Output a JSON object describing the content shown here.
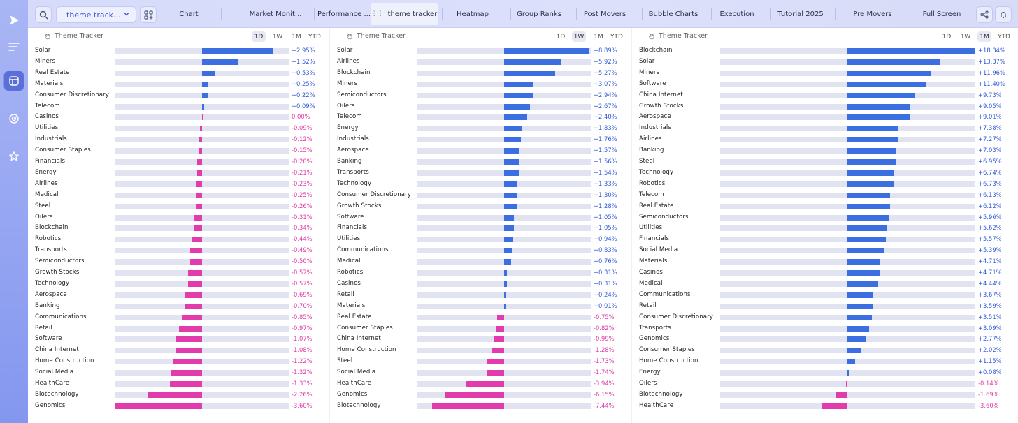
{
  "colors": {
    "positive": "#3b6ee0",
    "negative": "#e23cac"
  },
  "toolbar": {
    "search_icon": "search-icon",
    "select_value": "theme track...",
    "layout_icon": "grid-plus-icon",
    "share_icon": "share-icon",
    "bell_icon": "bell-icon"
  },
  "tabs": [
    {
      "label": "Chart"
    },
    {
      "label": "Market Monit..."
    },
    {
      "label": "Performance ..."
    },
    {
      "label": "theme tracker",
      "active": true
    },
    {
      "label": "Heatmap"
    },
    {
      "label": "Group Ranks"
    },
    {
      "label": "Post Movers"
    },
    {
      "label": "Bubble Charts"
    },
    {
      "label": "Execution"
    },
    {
      "label": "Tutorial 2025"
    },
    {
      "label": "Pre Movers"
    },
    {
      "label": "Full Screen"
    }
  ],
  "panels": [
    {
      "title": "Theme Tracker",
      "timeframes": [
        "1D",
        "1W",
        "1M",
        "YTD"
      ],
      "active_timeframe": "1D",
      "scale_max": 3.6,
      "rows": [
        {
          "name": "Solar",
          "value": 2.95,
          "label": "+2.95%"
        },
        {
          "name": "Miners",
          "value": 1.52,
          "label": "+1.52%"
        },
        {
          "name": "Real Estate",
          "value": 0.53,
          "label": "+0.53%"
        },
        {
          "name": "Materials",
          "value": 0.25,
          "label": "+0.25%"
        },
        {
          "name": "Consumer Discretionary",
          "value": 0.22,
          "label": "+0.22%"
        },
        {
          "name": "Telecom",
          "value": 0.09,
          "label": "+0.09%"
        },
        {
          "name": "Casinos",
          "value": 0.0,
          "label": "0.00%"
        },
        {
          "name": "Utilities",
          "value": -0.09,
          "label": "-0.09%"
        },
        {
          "name": "Industrials",
          "value": -0.12,
          "label": "-0.12%"
        },
        {
          "name": "Consumer Staples",
          "value": -0.15,
          "label": "-0.15%"
        },
        {
          "name": "Financials",
          "value": -0.2,
          "label": "-0.20%"
        },
        {
          "name": "Energy",
          "value": -0.21,
          "label": "-0.21%"
        },
        {
          "name": "Airlines",
          "value": -0.23,
          "label": "-0.23%"
        },
        {
          "name": "Medical",
          "value": -0.25,
          "label": "-0.25%"
        },
        {
          "name": "Steel",
          "value": -0.26,
          "label": "-0.26%"
        },
        {
          "name": "Oilers",
          "value": -0.31,
          "label": "-0.31%"
        },
        {
          "name": "Blockchain",
          "value": -0.34,
          "label": "-0.34%"
        },
        {
          "name": "Robotics",
          "value": -0.44,
          "label": "-0.44%"
        },
        {
          "name": "Transports",
          "value": -0.49,
          "label": "-0.49%"
        },
        {
          "name": "Semiconductors",
          "value": -0.5,
          "label": "-0.50%"
        },
        {
          "name": "Growth Stocks",
          "value": -0.57,
          "label": "-0.57%"
        },
        {
          "name": "Technology",
          "value": -0.57,
          "label": "-0.57%"
        },
        {
          "name": "Aerospace",
          "value": -0.69,
          "label": "-0.69%"
        },
        {
          "name": "Banking",
          "value": -0.7,
          "label": "-0.70%"
        },
        {
          "name": "Communications",
          "value": -0.85,
          "label": "-0.85%"
        },
        {
          "name": "Retail",
          "value": -0.97,
          "label": "-0.97%"
        },
        {
          "name": "Software",
          "value": -1.07,
          "label": "-1.07%"
        },
        {
          "name": "China Internet",
          "value": -1.08,
          "label": "-1.08%"
        },
        {
          "name": "Home Construction",
          "value": -1.22,
          "label": "-1.22%"
        },
        {
          "name": "Social Media",
          "value": -1.32,
          "label": "-1.32%"
        },
        {
          "name": "HealthCare",
          "value": -1.33,
          "label": "-1.33%"
        },
        {
          "name": "Biotechnology",
          "value": -2.26,
          "label": "-2.26%"
        },
        {
          "name": "Genomics",
          "value": -3.6,
          "label": "-3.60%"
        }
      ]
    },
    {
      "title": "Theme Tracker",
      "timeframes": [
        "1D",
        "1W",
        "1M",
        "YTD"
      ],
      "active_timeframe": "1W",
      "scale_max": 9.0,
      "rows": [
        {
          "name": "Solar",
          "value": 8.89,
          "label": "+8.89%"
        },
        {
          "name": "Airlines",
          "value": 5.92,
          "label": "+5.92%"
        },
        {
          "name": "Blockchain",
          "value": 5.27,
          "label": "+5.27%"
        },
        {
          "name": "Miners",
          "value": 3.07,
          "label": "+3.07%"
        },
        {
          "name": "Semiconductors",
          "value": 2.94,
          "label": "+2.94%"
        },
        {
          "name": "Oilers",
          "value": 2.67,
          "label": "+2.67%"
        },
        {
          "name": "Telecom",
          "value": 2.4,
          "label": "+2.40%"
        },
        {
          "name": "Energy",
          "value": 1.83,
          "label": "+1.83%"
        },
        {
          "name": "Industrials",
          "value": 1.76,
          "label": "+1.76%"
        },
        {
          "name": "Aerospace",
          "value": 1.57,
          "label": "+1.57%"
        },
        {
          "name": "Banking",
          "value": 1.56,
          "label": "+1.56%"
        },
        {
          "name": "Transports",
          "value": 1.54,
          "label": "+1.54%"
        },
        {
          "name": "Technology",
          "value": 1.33,
          "label": "+1.33%"
        },
        {
          "name": "Consumer Discretionary",
          "value": 1.3,
          "label": "+1.30%"
        },
        {
          "name": "Growth Stocks",
          "value": 1.28,
          "label": "+1.28%"
        },
        {
          "name": "Software",
          "value": 1.05,
          "label": "+1.05%"
        },
        {
          "name": "Financials",
          "value": 1.05,
          "label": "+1.05%"
        },
        {
          "name": "Utilities",
          "value": 0.94,
          "label": "+0.94%"
        },
        {
          "name": "Communications",
          "value": 0.83,
          "label": "+0.83%"
        },
        {
          "name": "Medical",
          "value": 0.76,
          "label": "+0.76%"
        },
        {
          "name": "Robotics",
          "value": 0.31,
          "label": "+0.31%"
        },
        {
          "name": "Casinos",
          "value": 0.31,
          "label": "+0.31%"
        },
        {
          "name": "Retail",
          "value": 0.24,
          "label": "+0.24%"
        },
        {
          "name": "Materials",
          "value": 0.01,
          "label": "+0.01%"
        },
        {
          "name": "Real Estate",
          "value": -0.75,
          "label": "-0.75%"
        },
        {
          "name": "Consumer Staples",
          "value": -0.82,
          "label": "-0.82%"
        },
        {
          "name": "China Internet",
          "value": -0.99,
          "label": "-0.99%"
        },
        {
          "name": "Home Construction",
          "value": -1.28,
          "label": "-1.28%"
        },
        {
          "name": "Steel",
          "value": -1.73,
          "label": "-1.73%"
        },
        {
          "name": "Social Media",
          "value": -1.74,
          "label": "-1.74%"
        },
        {
          "name": "HealthCare",
          "value": -3.94,
          "label": "-3.94%"
        },
        {
          "name": "Genomics",
          "value": -6.15,
          "label": "-6.15%"
        },
        {
          "name": "Biotechnology",
          "value": -7.44,
          "label": "-7.44%"
        }
      ]
    },
    {
      "title": "Theme Tracker",
      "timeframes": [
        "1D",
        "1W",
        "1M",
        "YTD"
      ],
      "active_timeframe": "1M",
      "scale_max": 18.34,
      "rows": [
        {
          "name": "Blockchain",
          "value": 18.34,
          "label": "+18.34%"
        },
        {
          "name": "Solar",
          "value": 13.37,
          "label": "+13.37%"
        },
        {
          "name": "Miners",
          "value": 11.96,
          "label": "+11.96%"
        },
        {
          "name": "Software",
          "value": 11.4,
          "label": "+11.40%"
        },
        {
          "name": "China Internet",
          "value": 9.73,
          "label": "+9.73%"
        },
        {
          "name": "Growth Stocks",
          "value": 9.05,
          "label": "+9.05%"
        },
        {
          "name": "Aerospace",
          "value": 9.01,
          "label": "+9.01%"
        },
        {
          "name": "Industrials",
          "value": 7.38,
          "label": "+7.38%"
        },
        {
          "name": "Airlines",
          "value": 7.27,
          "label": "+7.27%"
        },
        {
          "name": "Banking",
          "value": 7.03,
          "label": "+7.03%"
        },
        {
          "name": "Steel",
          "value": 6.95,
          "label": "+6.95%"
        },
        {
          "name": "Technology",
          "value": 6.74,
          "label": "+6.74%"
        },
        {
          "name": "Robotics",
          "value": 6.73,
          "label": "+6.73%"
        },
        {
          "name": "Telecom",
          "value": 6.13,
          "label": "+6.13%"
        },
        {
          "name": "Real Estate",
          "value": 6.12,
          "label": "+6.12%"
        },
        {
          "name": "Semiconductors",
          "value": 5.96,
          "label": "+5.96%"
        },
        {
          "name": "Utilities",
          "value": 5.62,
          "label": "+5.62%"
        },
        {
          "name": "Financials",
          "value": 5.57,
          "label": "+5.57%"
        },
        {
          "name": "Social Media",
          "value": 5.39,
          "label": "+5.39%"
        },
        {
          "name": "Materials",
          "value": 4.71,
          "label": "+4.71%"
        },
        {
          "name": "Casinos",
          "value": 4.71,
          "label": "+4.71%"
        },
        {
          "name": "Medical",
          "value": 4.44,
          "label": "+4.44%"
        },
        {
          "name": "Communications",
          "value": 3.67,
          "label": "+3.67%"
        },
        {
          "name": "Retail",
          "value": 3.59,
          "label": "+3.59%"
        },
        {
          "name": "Consumer Discretionary",
          "value": 3.51,
          "label": "+3.51%"
        },
        {
          "name": "Transports",
          "value": 3.09,
          "label": "+3.09%"
        },
        {
          "name": "Genomics",
          "value": 2.77,
          "label": "+2.77%"
        },
        {
          "name": "Consumer Staples",
          "value": 2.02,
          "label": "+2.02%"
        },
        {
          "name": "Home Construction",
          "value": 1.15,
          "label": "+1.15%"
        },
        {
          "name": "Energy",
          "value": 0.08,
          "label": "+0.08%"
        },
        {
          "name": "Oilers",
          "value": -0.14,
          "label": "-0.14%"
        },
        {
          "name": "Biotechnology",
          "value": -1.69,
          "label": "-1.69%"
        },
        {
          "name": "HealthCare",
          "value": -3.6,
          "label": "-3.60%"
        }
      ]
    }
  ]
}
